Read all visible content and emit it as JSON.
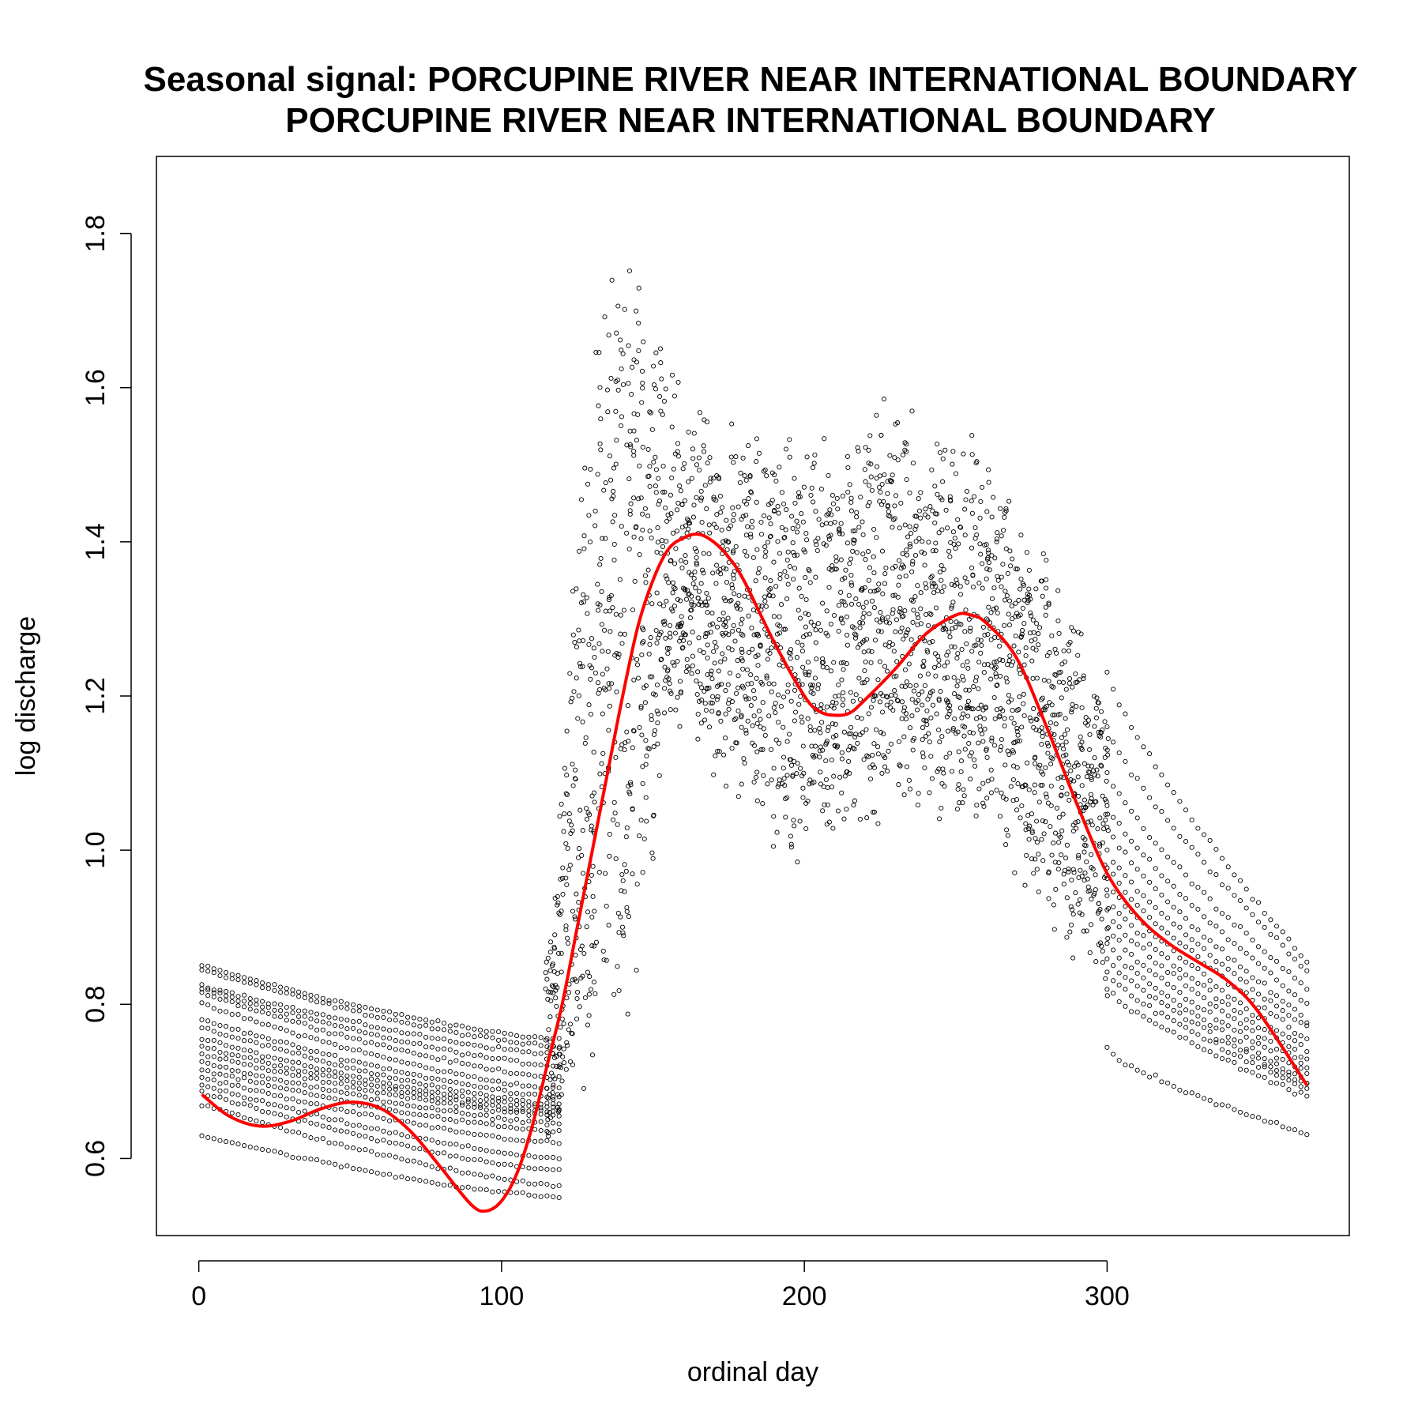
{
  "chart_data": {
    "type": "scatter",
    "title": "Seasonal signal: PORCUPINE RIVER NEAR INTERNATIONAL BOUNDARY",
    "subtitle": "PORCUPINE RIVER NEAR INTERNATIONAL BOUNDARY",
    "xlabel": "ordinal day",
    "ylabel": "log discharge",
    "xlim": [
      -14,
      380
    ],
    "ylim": [
      0.5,
      1.9
    ],
    "x_ticks": [
      0,
      100,
      200,
      300
    ],
    "y_ticks": [
      0.6,
      0.8,
      1.0,
      1.2,
      1.4,
      1.6,
      1.8
    ],
    "grid": false,
    "legend": "none",
    "colors": {
      "points": "#000000",
      "smooth": "#ff0000"
    },
    "series": [
      {
        "kind": "points",
        "description_free": true,
        "winter_tracks": {
          "day_start": 1,
          "day_end": 120,
          "start_values": [
            0.85,
            0.845,
            0.825,
            0.82,
            0.815,
            0.8,
            0.78,
            0.77,
            0.755,
            0.745,
            0.735,
            0.725,
            0.715,
            0.705,
            0.695,
            0.685,
            0.67,
            0.63
          ],
          "end_values": [
            0.755,
            0.745,
            0.735,
            0.72,
            0.705,
            0.69,
            0.68,
            0.67,
            0.665,
            0.66,
            0.655,
            0.645,
            0.635,
            0.62,
            0.6,
            0.585,
            0.565,
            0.55
          ]
        },
        "autumn_tracks": {
          "day_start": 300,
          "day_end": 366,
          "start_values": [
            1.23,
            1.16,
            1.1,
            1.06,
            1.03,
            1.0,
            0.98,
            0.96,
            0.94,
            0.92,
            0.9,
            0.88,
            0.86,
            0.84,
            0.82,
            0.74
          ],
          "end_values": [
            0.855,
            0.845,
            0.82,
            0.8,
            0.78,
            0.77,
            0.755,
            0.74,
            0.73,
            0.72,
            0.71,
            0.7,
            0.695,
            0.69,
            0.68,
            0.63
          ]
        },
        "summer_envelope": [
          [
            115,
            0.6,
            0.9
          ],
          [
            120,
            0.62,
            1.1
          ],
          [
            125,
            0.66,
            1.45
          ],
          [
            130,
            0.7,
            1.7
          ],
          [
            135,
            0.72,
            1.83
          ],
          [
            140,
            0.74,
            1.83
          ],
          [
            145,
            0.8,
            1.8
          ],
          [
            150,
            0.95,
            1.72
          ],
          [
            155,
            1.1,
            1.68
          ],
          [
            160,
            1.15,
            1.6
          ],
          [
            170,
            1.08,
            1.58
          ],
          [
            180,
            1.04,
            1.56
          ],
          [
            190,
            0.99,
            1.55
          ],
          [
            200,
            0.97,
            1.55
          ],
          [
            210,
            1.0,
            1.55
          ],
          [
            220,
            1.02,
            1.58
          ],
          [
            230,
            1.04,
            1.62
          ],
          [
            240,
            1.03,
            1.58
          ],
          [
            250,
            1.0,
            1.56
          ],
          [
            260,
            1.02,
            1.52
          ],
          [
            270,
            0.95,
            1.47
          ],
          [
            280,
            0.9,
            1.4
          ],
          [
            290,
            0.85,
            1.3
          ],
          [
            300,
            0.8,
            1.23
          ]
        ]
      },
      {
        "kind": "smooth",
        "x": [
          1,
          10,
          20,
          30,
          40,
          50,
          60,
          70,
          80,
          90,
          95,
          100,
          105,
          110,
          115,
          120,
          125,
          130,
          135,
          140,
          145,
          150,
          155,
          160,
          165,
          170,
          175,
          180,
          190,
          200,
          205,
          210,
          215,
          220,
          230,
          240,
          250,
          255,
          260,
          270,
          280,
          290,
          300,
          310,
          320,
          330,
          340,
          350,
          366
        ],
        "y": [
          0.683,
          0.655,
          0.642,
          0.648,
          0.664,
          0.673,
          0.665,
          0.635,
          0.588,
          0.54,
          0.532,
          0.545,
          0.58,
          0.64,
          0.72,
          0.8,
          0.9,
          1.0,
          1.1,
          1.2,
          1.29,
          1.35,
          1.39,
          1.405,
          1.41,
          1.4,
          1.38,
          1.35,
          1.27,
          1.2,
          1.18,
          1.175,
          1.178,
          1.195,
          1.235,
          1.28,
          1.305,
          1.305,
          1.295,
          1.25,
          1.16,
          1.06,
          0.97,
          0.915,
          0.88,
          0.855,
          0.83,
          0.79,
          0.695
        ]
      }
    ]
  }
}
